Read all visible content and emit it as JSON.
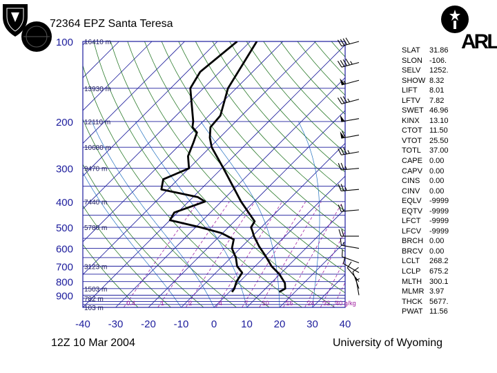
{
  "title": "72364 EPZ Santa Teresa",
  "footer": {
    "date": "12Z 10 Mar 2004",
    "source": "University of Wyoming"
  },
  "logos": {
    "arl_text": "ARL"
  },
  "colors": {
    "frame": "#1c1c9c",
    "isobar": "#1c1c9c",
    "isotherm": "#1c1c9c",
    "dry_adiabat": "#2a7a2a",
    "mixing_ratio": "#a020a0",
    "moist_adiabat": "#1f6fbf",
    "sounding": "#000000",
    "axis_label": "#1c1c9c"
  },
  "indices": [
    {
      "label": "SLAT",
      "value": "31.86"
    },
    {
      "label": "SLON",
      "value": "-106."
    },
    {
      "label": "SELV",
      "value": "1252."
    },
    {
      "label": "SHOW",
      "value": "8.32"
    },
    {
      "label": "LIFT",
      "value": "8.01"
    },
    {
      "label": "LFTV",
      "value": "7.82"
    },
    {
      "label": "SWET",
      "value": "46.96"
    },
    {
      "label": "KINX",
      "value": "13.10"
    },
    {
      "label": "CTOT",
      "value": "11.50"
    },
    {
      "label": "VTOT",
      "value": "25.50"
    },
    {
      "label": "TOTL",
      "value": "37.00"
    },
    {
      "label": "CAPE",
      "value": "0.00"
    },
    {
      "label": "CAPV",
      "value": "0.00"
    },
    {
      "label": "CINS",
      "value": "0.00"
    },
    {
      "label": "CINV",
      "value": "0.00"
    },
    {
      "label": "EQLV",
      "value": "-9999"
    },
    {
      "label": "EQTV",
      "value": "-9999"
    },
    {
      "label": "LFCT",
      "value": "-9999"
    },
    {
      "label": "LFCV",
      "value": "-9999"
    },
    {
      "label": "BRCH",
      "value": "0.00"
    },
    {
      "label": "BRCV",
      "value": "0.00"
    },
    {
      "label": "LCLT",
      "value": "268.2"
    },
    {
      "label": "LCLP",
      "value": "675.2"
    },
    {
      "label": "MLTH",
      "value": "300.1"
    },
    {
      "label": "MLMR",
      "value": "3.97"
    },
    {
      "label": "THCK",
      "value": "5677."
    },
    {
      "label": "PWAT",
      "value": "11.56"
    }
  ],
  "chart_data": {
    "type": "line",
    "xlim": [
      -40,
      40
    ],
    "ylim": [
      1000,
      100
    ],
    "x_ticks": [
      "-40",
      "-30",
      "-20",
      "-10",
      "0",
      "10",
      "20",
      "30",
      "40"
    ],
    "y_ticks": [
      {
        "p": 100,
        "label": "100"
      },
      {
        "p": 200,
        "label": "200"
      },
      {
        "p": 300,
        "label": "300"
      },
      {
        "p": 400,
        "label": "400"
      },
      {
        "p": 500,
        "label": "500"
      },
      {
        "p": 600,
        "label": "600"
      },
      {
        "p": 700,
        "label": "700"
      },
      {
        "p": 800,
        "label": "800"
      },
      {
        "p": 900,
        "label": "900"
      }
    ],
    "isobars": [
      100,
      150,
      200,
      250,
      300,
      350,
      400,
      450,
      500,
      550,
      600,
      650,
      700,
      750,
      800,
      850,
      900,
      925,
      950,
      975,
      1000
    ],
    "height_labels": [
      {
        "p": 100,
        "label": "16410 m"
      },
      {
        "p": 150,
        "label": "13930 m"
      },
      {
        "p": 200,
        "label": "12110 m"
      },
      {
        "p": 250,
        "label": "10680 m"
      },
      {
        "p": 300,
        "label": "9470 m"
      },
      {
        "p": 400,
        "label": "7440 m"
      },
      {
        "p": 500,
        "label": "5780 m"
      },
      {
        "p": 700,
        "label": "3123 m"
      },
      {
        "p": 850,
        "label": "1503 m"
      },
      {
        "p": 925,
        "label": "782 m"
      },
      {
        "p": 1000,
        "label": "103 m"
      }
    ],
    "mixing_ratio_labels": [
      "0.4",
      "1",
      "2",
      "4",
      "7",
      "10",
      "16",
      "24",
      "32",
      "40 g/kg"
    ],
    "temperature": [
      {
        "p": 875,
        "t": 15.2
      },
      {
        "p": 850,
        "t": 16.0
      },
      {
        "p": 810,
        "t": 14.2
      },
      {
        "p": 750,
        "t": 9.8
      },
      {
        "p": 700,
        "t": 5.0
      },
      {
        "p": 640,
        "t": 0.0
      },
      {
        "p": 590,
        "t": -4.8
      },
      {
        "p": 540,
        "t": -9.5
      },
      {
        "p": 520,
        "t": -11.2
      },
      {
        "p": 500,
        "t": -13.1
      },
      {
        "p": 475,
        "t": -13.8
      },
      {
        "p": 400,
        "t": -24.0
      },
      {
        "p": 300,
        "t": -39.5
      },
      {
        "p": 250,
        "t": -49.5
      },
      {
        "p": 230,
        "t": -53.0
      },
      {
        "p": 210,
        "t": -56.0
      },
      {
        "p": 190,
        "t": -56.5
      },
      {
        "p": 150,
        "t": -62.5
      },
      {
        "p": 100,
        "t": -68.0
      }
    ],
    "dewpoint": [
      {
        "p": 875,
        "t": 0.8
      },
      {
        "p": 850,
        "t": 0.5
      },
      {
        "p": 800,
        "t": -1.0
      },
      {
        "p": 740,
        "t": -2.0
      },
      {
        "p": 700,
        "t": -5.5
      },
      {
        "p": 650,
        "t": -8.5
      },
      {
        "p": 600,
        "t": -12.5
      },
      {
        "p": 555,
        "t": -14.7
      },
      {
        "p": 525,
        "t": -20.5
      },
      {
        "p": 500,
        "t": -28.5
      },
      {
        "p": 470,
        "t": -40.0
      },
      {
        "p": 440,
        "t": -41.0
      },
      {
        "p": 400,
        "t": -35.0
      },
      {
        "p": 385,
        "t": -38.5
      },
      {
        "p": 360,
        "t": -52.0
      },
      {
        "p": 330,
        "t": -54.5
      },
      {
        "p": 300,
        "t": -50.0
      },
      {
        "p": 270,
        "t": -54.0
      },
      {
        "p": 240,
        "t": -56.5
      },
      {
        "p": 220,
        "t": -58.5
      },
      {
        "p": 210,
        "t": -61.5
      },
      {
        "p": 200,
        "t": -63.0
      },
      {
        "p": 150,
        "t": -74.0
      },
      {
        "p": 130,
        "t": -76.0
      },
      {
        "p": 100,
        "t": -74.0
      }
    ],
    "wind_barbs": [
      {
        "p": 100,
        "dir": 255,
        "kt": 40
      },
      {
        "p": 120,
        "dir": 255,
        "kt": 45
      },
      {
        "p": 140,
        "dir": 255,
        "kt": 55
      },
      {
        "p": 165,
        "dir": 255,
        "kt": 35
      },
      {
        "p": 195,
        "dir": 260,
        "kt": 50
      },
      {
        "p": 225,
        "dir": 260,
        "kt": 60
      },
      {
        "p": 260,
        "dir": 260,
        "kt": 35
      },
      {
        "p": 300,
        "dir": 265,
        "kt": 25
      },
      {
        "p": 360,
        "dir": 265,
        "kt": 25
      },
      {
        "p": 430,
        "dir": 265,
        "kt": 20
      },
      {
        "p": 540,
        "dir": 270,
        "kt": 20
      },
      {
        "p": 600,
        "dir": 280,
        "kt": 15
      },
      {
        "p": 680,
        "dir": 290,
        "kt": 10
      },
      {
        "p": 740,
        "dir": 300,
        "kt": 10
      },
      {
        "p": 800,
        "dir": 320,
        "kt": 10
      },
      {
        "p": 850,
        "dir": 340,
        "kt": 10
      },
      {
        "p": 900,
        "dir": 350,
        "kt": 5
      }
    ]
  }
}
